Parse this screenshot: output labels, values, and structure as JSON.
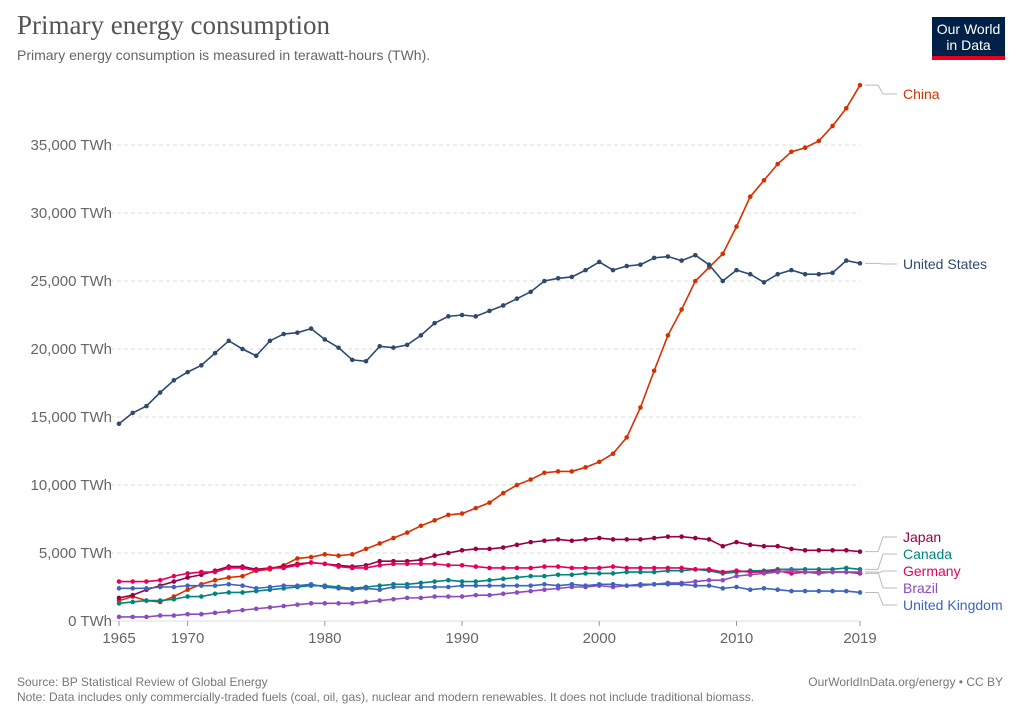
{
  "header": {
    "title": "Primary energy consumption",
    "subtitle": "Primary energy consumption is measured in terawatt-hours (TWh).",
    "logo": "Our World in Data"
  },
  "footer": {
    "source": "Source: BP Statistical Review of Global Energy",
    "note": "Note: Data includes only commercially-traded fuels (coal, oil, gas), nuclear and modern renewables. It does not include traditional biomass.",
    "credit": "OurWorldInData.org/energy • CC BY"
  },
  "chart_data": {
    "type": "line",
    "title": "Primary energy consumption",
    "xlabel": "",
    "ylabel": "",
    "xlim": [
      1965,
      2019
    ],
    "ylim": [
      0,
      40000
    ],
    "grid": "horizontal dashed",
    "legend": "right (line-end labels)",
    "x_ticks": [
      "1965",
      "1970",
      "1980",
      "1990",
      "2000",
      "2010",
      "2019"
    ],
    "y_ticks": [
      "0 TWh",
      "5,000 TWh",
      "10,000 TWh",
      "15,000 TWh",
      "20,000 TWh",
      "25,000 TWh",
      "30,000 TWh",
      "35,000 TWh"
    ],
    "x_start": 1965,
    "series": [
      {
        "name": "China",
        "color": "#d73000",
        "values": [
          1500,
          1800,
          1500,
          1400,
          1800,
          2300,
          2700,
          3000,
          3200,
          3300,
          3700,
          3800,
          4100,
          4600,
          4700,
          4900,
          4800,
          4900,
          5300,
          5700,
          6100,
          6500,
          7000,
          7400,
          7800,
          7900,
          8300,
          8700,
          9400,
          10000,
          10400,
          10900,
          11000,
          11000,
          11300,
          11700,
          12300,
          13500,
          15700,
          18400,
          21000,
          22900,
          25000,
          26000,
          27000,
          29000,
          31200,
          32400,
          33600,
          34500,
          34800,
          35300,
          36400,
          37700,
          39400
        ]
      },
      {
        "name": "United States",
        "color": "#2e4a6e",
        "values": [
          14500,
          15300,
          15800,
          16800,
          17700,
          18300,
          18800,
          19700,
          20600,
          20000,
          19500,
          20600,
          21100,
          21200,
          21500,
          20700,
          20100,
          19200,
          19100,
          20200,
          20100,
          20300,
          21000,
          21900,
          22400,
          22500,
          22400,
          22800,
          23200,
          23700,
          24200,
          25000,
          25200,
          25300,
          25800,
          26400,
          25800,
          26100,
          26200,
          26700,
          26800,
          26500,
          26900,
          26200,
          25000,
          25800,
          25500,
          24900,
          25500,
          25800,
          25500,
          25500,
          25600,
          26500,
          26300
        ]
      },
      {
        "name": "Japan",
        "color": "#970046",
        "values": [
          1700,
          1900,
          2300,
          2600,
          2900,
          3200,
          3400,
          3700,
          4000,
          4000,
          3800,
          3900,
          4000,
          4200,
          4300,
          4200,
          4100,
          4000,
          4100,
          4400,
          4400,
          4400,
          4500,
          4800,
          5000,
          5200,
          5300,
          5300,
          5400,
          5600,
          5800,
          5900,
          6000,
          5900,
          6000,
          6100,
          6000,
          6000,
          6000,
          6100,
          6200,
          6200,
          6100,
          6000,
          5500,
          5800,
          5600,
          5500,
          5500,
          5300,
          5200,
          5200,
          5200,
          5200,
          5100
        ]
      },
      {
        "name": "Canada",
        "color": "#00847e",
        "values": [
          1300,
          1400,
          1500,
          1500,
          1600,
          1800,
          1800,
          2000,
          2100,
          2100,
          2200,
          2300,
          2400,
          2500,
          2600,
          2600,
          2500,
          2400,
          2500,
          2600,
          2700,
          2700,
          2800,
          2900,
          3000,
          2900,
          2900,
          3000,
          3100,
          3200,
          3300,
          3300,
          3400,
          3400,
          3500,
          3500,
          3500,
          3600,
          3600,
          3600,
          3700,
          3700,
          3800,
          3700,
          3500,
          3600,
          3700,
          3700,
          3800,
          3800,
          3800,
          3800,
          3800,
          3900,
          3800
        ]
      },
      {
        "name": "Germany",
        "color": "#e6005c",
        "values": [
          2900,
          2900,
          2900,
          3000,
          3300,
          3500,
          3600,
          3600,
          3900,
          3900,
          3700,
          3900,
          3900,
          4100,
          4300,
          4200,
          4000,
          3900,
          3900,
          4100,
          4200,
          4200,
          4200,
          4200,
          4100,
          4100,
          4000,
          3900,
          3900,
          3900,
          3900,
          4000,
          4000,
          3900,
          3900,
          3900,
          4000,
          3900,
          3900,
          3900,
          3900,
          3900,
          3800,
          3800,
          3600,
          3700,
          3600,
          3600,
          3700,
          3500,
          3600,
          3600,
          3600,
          3600,
          3500
        ]
      },
      {
        "name": "Brazil",
        "color": "#8c4bbf",
        "values": [
          300,
          300,
          300,
          400,
          400,
          500,
          500,
          600,
          700,
          800,
          900,
          1000,
          1100,
          1200,
          1300,
          1300,
          1300,
          1300,
          1400,
          1500,
          1600,
          1700,
          1700,
          1800,
          1800,
          1800,
          1900,
          1900,
          2000,
          2100,
          2200,
          2300,
          2400,
          2500,
          2500,
          2600,
          2500,
          2600,
          2600,
          2700,
          2800,
          2800,
          2900,
          3000,
          3000,
          3300,
          3400,
          3500,
          3600,
          3700,
          3600,
          3500,
          3600,
          3600,
          3600
        ]
      },
      {
        "name": "United Kingdom",
        "color": "#3c64c0",
        "values": [
          2400,
          2400,
          2400,
          2500,
          2500,
          2600,
          2600,
          2600,
          2700,
          2600,
          2400,
          2500,
          2600,
          2600,
          2700,
          2500,
          2400,
          2300,
          2400,
          2300,
          2500,
          2500,
          2500,
          2500,
          2500,
          2600,
          2600,
          2600,
          2600,
          2600,
          2600,
          2700,
          2600,
          2700,
          2600,
          2700,
          2700,
          2600,
          2700,
          2700,
          2700,
          2700,
          2600,
          2600,
          2400,
          2500,
          2300,
          2400,
          2300,
          2200,
          2200,
          2200,
          2200,
          2200,
          2100
        ]
      }
    ]
  }
}
